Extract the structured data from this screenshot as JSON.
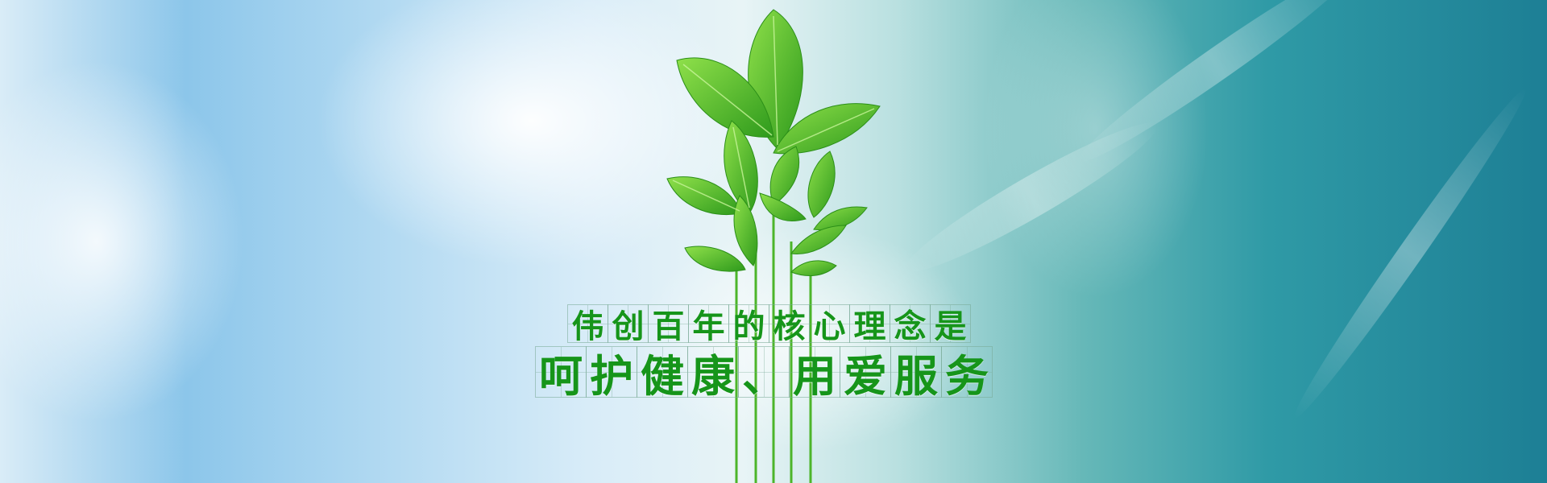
{
  "banner": {
    "slogan_line_1": [
      "伟",
      "创",
      "百",
      "年",
      "的",
      "核",
      "心",
      "理",
      "念",
      "是"
    ],
    "slogan_line_2": [
      "呵",
      "护",
      "健",
      "康",
      "、",
      "用",
      "爱",
      "服",
      "务"
    ]
  },
  "colors": {
    "text_green": "#16951a",
    "leaf_light": "#7ed43a",
    "leaf_dark": "#2e9a1c",
    "sky_left": "#8cc6ea",
    "sky_right": "#1d7f95"
  },
  "icons": {
    "plant": "sprout-leaves-icon"
  }
}
